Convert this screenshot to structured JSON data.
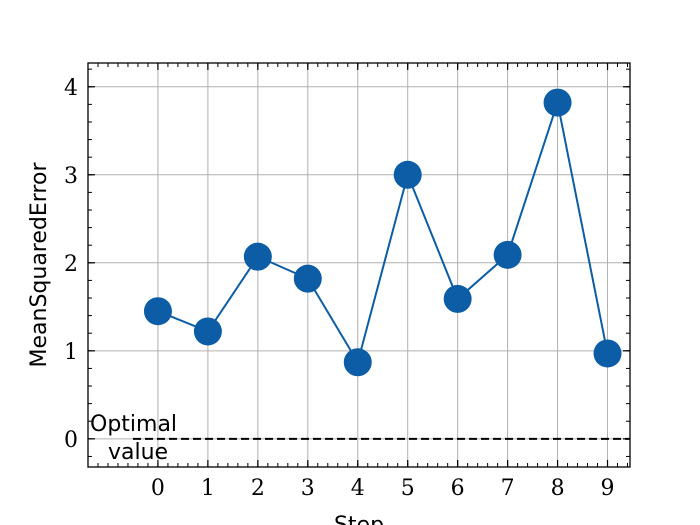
{
  "chart_data": {
    "type": "line",
    "xlabel": "Step",
    "ylabel": "MeanSquaredError",
    "x": [
      0,
      1,
      2,
      3,
      4,
      5,
      6,
      7,
      8,
      9
    ],
    "values": [
      1.45,
      1.22,
      2.07,
      1.82,
      0.87,
      3.0,
      1.59,
      2.09,
      3.82,
      0.97
    ],
    "xlim": [
      -1.4,
      9.45
    ],
    "ylim": [
      -0.32,
      4.27
    ],
    "xticks": [
      "0",
      "1",
      "2",
      "3",
      "4",
      "5",
      "6",
      "7",
      "8",
      "9"
    ],
    "yticks": [
      "0",
      "1",
      "2",
      "3",
      "4"
    ],
    "grid": true,
    "line_color": "#0C5DA5",
    "reference_line": {
      "y": 0,
      "style": "dashed",
      "color": "#000000",
      "label_line1": "Optimal",
      "label_line2": "value"
    }
  }
}
